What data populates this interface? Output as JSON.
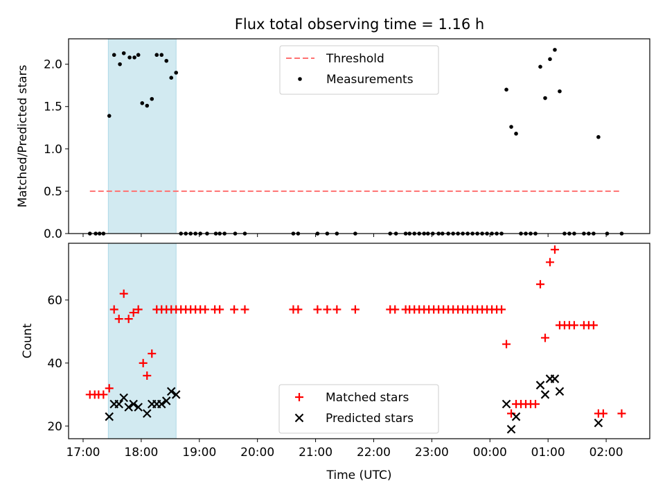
{
  "title": "Flux total observing time = 1.16 h",
  "colors": {
    "threshold": "#ff7070",
    "measurements": "#000000",
    "matched": "#ff0000",
    "predicted": "#000000",
    "span": "#add8e6"
  },
  "chart_data": [
    {
      "type": "scatter",
      "ylabel": "Matched/Predicted stars",
      "xlabel": "",
      "xlim": [
        "16:45",
        "02:45"
      ],
      "ylim": [
        0,
        2.3
      ],
      "yticks": [
        "0.0",
        "0.5",
        "1.0",
        "1.5",
        "2.0"
      ],
      "shaded_span": [
        "17:26",
        "18:36"
      ],
      "legend_position": "upper-center",
      "threshold": {
        "name": "Threshold",
        "value": 0.5,
        "x_range": [
          "17:07",
          "02:14"
        ]
      },
      "series": [
        {
          "name": "Measurements",
          "points": [
            [
              "17:07",
              0
            ],
            [
              "17:13",
              0
            ],
            [
              "17:17",
              0
            ],
            [
              "17:21",
              0
            ],
            [
              "17:27",
              1.39
            ],
            [
              "17:32",
              2.11
            ],
            [
              "17:38",
              2.0
            ],
            [
              "17:42",
              2.13
            ],
            [
              "17:48",
              2.08
            ],
            [
              "17:53",
              2.08
            ],
            [
              "17:57",
              2.11
            ],
            [
              "18:01",
              1.54
            ],
            [
              "18:06",
              1.51
            ],
            [
              "18:11",
              1.59
            ],
            [
              "18:16",
              2.11
            ],
            [
              "18:21",
              2.11
            ],
            [
              "18:26",
              2.04
            ],
            [
              "18:31",
              1.84
            ],
            [
              "18:36",
              1.9
            ],
            [
              "18:41",
              0
            ],
            [
              "18:46",
              0
            ],
            [
              "18:51",
              0
            ],
            [
              "18:56",
              0
            ],
            [
              "19:01",
              0
            ],
            [
              "19:08",
              0
            ],
            [
              "19:17",
              0
            ],
            [
              "19:21",
              0
            ],
            [
              "19:26",
              0
            ],
            [
              "19:37",
              0
            ],
            [
              "19:47",
              0
            ],
            [
              "20:37",
              0
            ],
            [
              "20:42",
              0
            ],
            [
              "21:02",
              0
            ],
            [
              "21:12",
              0
            ],
            [
              "21:22",
              0
            ],
            [
              "21:41",
              0
            ],
            [
              "22:17",
              0
            ],
            [
              "22:23",
              0
            ],
            [
              "22:33",
              0
            ],
            [
              "22:37",
              0
            ],
            [
              "22:42",
              0
            ],
            [
              "22:47",
              0
            ],
            [
              "22:52",
              0
            ],
            [
              "22:56",
              0
            ],
            [
              "23:01",
              0
            ],
            [
              "23:07",
              0
            ],
            [
              "23:11",
              0
            ],
            [
              "23:17",
              0
            ],
            [
              "23:22",
              0
            ],
            [
              "23:27",
              0
            ],
            [
              "23:32",
              0
            ],
            [
              "23:37",
              0
            ],
            [
              "23:42",
              0
            ],
            [
              "23:47",
              0
            ],
            [
              "23:52",
              0
            ],
            [
              "23:57",
              0
            ],
            [
              "00:02",
              0
            ],
            [
              "00:07",
              0
            ],
            [
              "00:12",
              0
            ],
            [
              "00:17",
              1.7
            ],
            [
              "00:22",
              1.26
            ],
            [
              "00:27",
              1.18
            ],
            [
              "00:32",
              0
            ],
            [
              "00:37",
              0
            ],
            [
              "00:42",
              0
            ],
            [
              "00:47",
              0
            ],
            [
              "00:52",
              1.97
            ],
            [
              "00:57",
              1.6
            ],
            [
              "01:02",
              2.06
            ],
            [
              "01:07",
              2.17
            ],
            [
              "01:12",
              1.68
            ],
            [
              "01:17",
              0
            ],
            [
              "01:22",
              0
            ],
            [
              "01:27",
              0
            ],
            [
              "01:37",
              0
            ],
            [
              "01:42",
              0
            ],
            [
              "01:47",
              0
            ],
            [
              "01:52",
              1.14
            ],
            [
              "02:01",
              0
            ],
            [
              "02:16",
              0
            ]
          ]
        }
      ]
    },
    {
      "type": "scatter",
      "ylabel": "Count",
      "xlabel": "Time (UTC)",
      "xlim": [
        "16:45",
        "02:45"
      ],
      "ylim": [
        16,
        78
      ],
      "yticks": [
        "20",
        "40",
        "60"
      ],
      "xticks": [
        "17:00",
        "18:00",
        "19:00",
        "20:00",
        "21:00",
        "22:00",
        "23:00",
        "00:00",
        "01:00",
        "02:00"
      ],
      "shaded_span": [
        "17:26",
        "18:36"
      ],
      "legend_position": "lower-center",
      "series": [
        {
          "name": "Matched stars",
          "marker": "plus",
          "points": [
            [
              "17:07",
              30
            ],
            [
              "17:12",
              30
            ],
            [
              "17:16",
              30
            ],
            [
              "17:21",
              30
            ],
            [
              "17:27",
              32
            ],
            [
              "17:32",
              57
            ],
            [
              "17:37",
              54
            ],
            [
              "17:42",
              62
            ],
            [
              "17:47",
              54
            ],
            [
              "17:52",
              56
            ],
            [
              "17:57",
              57
            ],
            [
              "18:02",
              40
            ],
            [
              "18:06",
              36
            ],
            [
              "18:11",
              43
            ],
            [
              "18:16",
              57
            ],
            [
              "18:21",
              57
            ],
            [
              "18:26",
              57
            ],
            [
              "18:31",
              57
            ],
            [
              "18:36",
              57
            ],
            [
              "18:41",
              57
            ],
            [
              "18:46",
              57
            ],
            [
              "18:51",
              57
            ],
            [
              "18:56",
              57
            ],
            [
              "19:01",
              57
            ],
            [
              "19:06",
              57
            ],
            [
              "19:16",
              57
            ],
            [
              "19:21",
              57
            ],
            [
              "19:36",
              57
            ],
            [
              "19:47",
              57
            ],
            [
              "20:37",
              57
            ],
            [
              "20:42",
              57
            ],
            [
              "21:02",
              57
            ],
            [
              "21:12",
              57
            ],
            [
              "21:22",
              57
            ],
            [
              "21:41",
              57
            ],
            [
              "22:17",
              57
            ],
            [
              "22:22",
              57
            ],
            [
              "22:33",
              57
            ],
            [
              "22:37",
              57
            ],
            [
              "22:42",
              57
            ],
            [
              "22:47",
              57
            ],
            [
              "22:52",
              57
            ],
            [
              "22:57",
              57
            ],
            [
              "23:02",
              57
            ],
            [
              "23:07",
              57
            ],
            [
              "23:12",
              57
            ],
            [
              "23:17",
              57
            ],
            [
              "23:22",
              57
            ],
            [
              "23:27",
              57
            ],
            [
              "23:32",
              57
            ],
            [
              "23:37",
              57
            ],
            [
              "23:42",
              57
            ],
            [
              "23:47",
              57
            ],
            [
              "23:52",
              57
            ],
            [
              "23:57",
              57
            ],
            [
              "00:02",
              57
            ],
            [
              "00:07",
              57
            ],
            [
              "00:12",
              57
            ],
            [
              "00:17",
              46
            ],
            [
              "00:22",
              24
            ],
            [
              "00:27",
              27
            ],
            [
              "00:32",
              27
            ],
            [
              "00:37",
              27
            ],
            [
              "00:42",
              27
            ],
            [
              "00:47",
              27
            ],
            [
              "00:52",
              65
            ],
            [
              "00:57",
              48
            ],
            [
              "01:02",
              72
            ],
            [
              "01:07",
              76
            ],
            [
              "01:12",
              52
            ],
            [
              "01:17",
              52
            ],
            [
              "01:22",
              52
            ],
            [
              "01:27",
              52
            ],
            [
              "01:37",
              52
            ],
            [
              "01:42",
              52
            ],
            [
              "01:47",
              52
            ],
            [
              "01:52",
              24
            ],
            [
              "01:57",
              24
            ],
            [
              "02:16",
              24
            ]
          ]
        },
        {
          "name": "Predicted stars",
          "marker": "x",
          "points": [
            [
              "17:27",
              23
            ],
            [
              "17:32",
              27
            ],
            [
              "17:37",
              27
            ],
            [
              "17:42",
              29
            ],
            [
              "17:47",
              26
            ],
            [
              "17:52",
              27
            ],
            [
              "17:57",
              26
            ],
            [
              "18:06",
              24
            ],
            [
              "18:11",
              27
            ],
            [
              "18:16",
              27
            ],
            [
              "18:21",
              27
            ],
            [
              "18:26",
              28
            ],
            [
              "18:31",
              31
            ],
            [
              "18:36",
              30
            ],
            [
              "00:17",
              27
            ],
            [
              "00:22",
              19
            ],
            [
              "00:27",
              23
            ],
            [
              "00:52",
              33
            ],
            [
              "00:57",
              30
            ],
            [
              "01:02",
              35
            ],
            [
              "01:07",
              35
            ],
            [
              "01:12",
              31
            ],
            [
              "01:52",
              21
            ]
          ]
        }
      ]
    }
  ]
}
